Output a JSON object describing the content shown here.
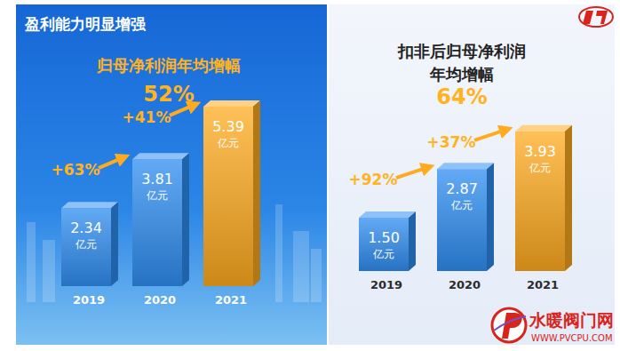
{
  "header": {
    "title": "盈利能力明显增强"
  },
  "watermark": {
    "name": "水暖阀门网",
    "url": "WWW.PVCPU.COM"
  },
  "chart_data": [
    {
      "type": "bar",
      "subtitle": [
        "归母净利润年均增幅"
      ],
      "headline": "52%",
      "categories": [
        "2019",
        "2020",
        "2021"
      ],
      "values": [
        2.34,
        3.81,
        5.39
      ],
      "value_labels": [
        "2.34 亿元",
        "3.81 亿元",
        "5.39 亿元"
      ],
      "colors": [
        "#2f8ef2",
        "#2f8ef2",
        "#ffab1f"
      ],
      "growth": [
        "+63%",
        "+41%"
      ],
      "ylim": [
        0,
        5.6
      ],
      "tick_labels": false,
      "data_labels": true
    },
    {
      "type": "bar",
      "subtitle": [
        "扣非后归母净利润",
        "年均增幅"
      ],
      "headline": "64%",
      "categories": [
        "2019",
        "2020",
        "2021"
      ],
      "values": [
        1.5,
        2.87,
        3.93
      ],
      "value_labels": [
        "1.50 亿元",
        "2.87 亿元",
        "3.93 亿元"
      ],
      "colors": [
        "#2f8ef2",
        "#2f8ef2",
        "#ffab1f"
      ],
      "growth": [
        "+92%",
        "+37%"
      ],
      "ylim": [
        0,
        4.5
      ],
      "tick_labels": false,
      "data_labels": true
    }
  ]
}
